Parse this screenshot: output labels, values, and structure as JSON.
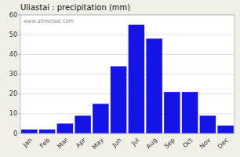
{
  "chart_data": {
    "type": "bar",
    "title": "Uliastai : precipitation (mm)",
    "categories": [
      "Jan",
      "Feb",
      "Mar",
      "Apr",
      "May",
      "Jun",
      "Jul",
      "Aug",
      "Sep",
      "Oct",
      "Nov",
      "Dec"
    ],
    "values": [
      2,
      2,
      5,
      9,
      15,
      34,
      55,
      48,
      21,
      21,
      9,
      4
    ],
    "color": "#1414e6",
    "ylim": [
      0,
      60
    ],
    "yticks": [
      0,
      10,
      20,
      30,
      40,
      50,
      60
    ],
    "grid": true,
    "annotations": [
      "www.allmetsat.com"
    ]
  }
}
